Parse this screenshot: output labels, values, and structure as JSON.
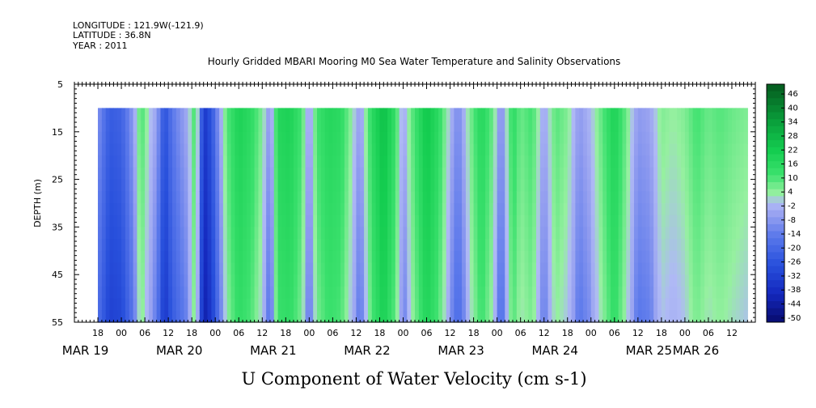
{
  "header": {
    "longitude": "LONGITUDE : 121.9W(-121.9)",
    "latitude": "LATITUDE : 36.8N",
    "year": "YEAR : 2011"
  },
  "chart_data": {
    "type": "heatmap",
    "title": "Hourly Gridded MBARI Mooring M0 Sea Water Temperature and Salinity Observations",
    "xlabel": "U Component of Water Velocity (cm s-1)",
    "ylabel": "DEPTH (m)",
    "ylim": [
      5,
      55
    ],
    "y_inverted": true,
    "y_ticks": [
      5,
      15,
      25,
      35,
      45,
      55
    ],
    "x_range_hours": [
      "2011-03-19T12:00",
      "2011-03-26T18:00"
    ],
    "x_hour_ticks": [
      "18",
      "00",
      "06",
      "12",
      "18",
      "00",
      "06",
      "12",
      "18",
      "00",
      "06",
      "12",
      "18",
      "00",
      "06",
      "12",
      "18",
      "00",
      "06",
      "12",
      "18",
      "00",
      "06",
      "12",
      "18",
      "00",
      "06",
      "12"
    ],
    "x_date_labels": [
      "MAR 19",
      "MAR 20",
      "MAR 21",
      "MAR 22",
      "MAR 23",
      "MAR 24",
      "MAR 25",
      "MAR 26"
    ],
    "data_depth_range": [
      10,
      55
    ],
    "data_time_start": "2011-03-19T18:00",
    "data_time_end": "2011-03-26T16:00",
    "colorbar": {
      "levels": [
        "46",
        "40",
        "34",
        "28",
        "22",
        "16",
        "10",
        "4",
        "-2",
        "-8",
        "-14",
        "-20",
        "-26",
        "-32",
        "-38",
        "-44",
        "-50"
      ],
      "range": [
        -50,
        50
      ],
      "positive_color": "#00d24a",
      "negative_color": "#1030d0",
      "zero_color": "#9fa8f0"
    },
    "time_profile": [
      {
        "t": "2011-03-19T18:00",
        "u": -8
      },
      {
        "t": "2011-03-19T21:00",
        "u": -22
      },
      {
        "t": "2011-03-20T00:00",
        "u": -20
      },
      {
        "t": "2011-03-20T03:00",
        "u": -6
      },
      {
        "t": "2011-03-20T05:00",
        "u": 12
      },
      {
        "t": "2011-03-20T07:00",
        "u": 2
      },
      {
        "t": "2011-03-20T09:00",
        "u": -4
      },
      {
        "t": "2011-03-20T11:00",
        "u": -26
      },
      {
        "t": "2011-03-20T13:00",
        "u": -14
      },
      {
        "t": "2011-03-20T15:00",
        "u": -8
      },
      {
        "t": "2011-03-20T17:00",
        "u": -2
      },
      {
        "t": "2011-03-20T19:00",
        "u": 14
      },
      {
        "t": "2011-03-20T21:00",
        "u": -34
      },
      {
        "t": "2011-03-20T23:00",
        "u": -24
      },
      {
        "t": "2011-03-21T01:00",
        "u": -6
      },
      {
        "t": "2011-03-21T03:00",
        "u": 10
      },
      {
        "t": "2011-03-21T06:00",
        "u": 20
      },
      {
        "t": "2011-03-21T09:00",
        "u": 16
      },
      {
        "t": "2011-03-21T12:00",
        "u": 6
      },
      {
        "t": "2011-03-21T14:00",
        "u": -8
      },
      {
        "t": "2011-03-21T16:00",
        "u": 18
      },
      {
        "t": "2011-03-21T19:00",
        "u": 20
      },
      {
        "t": "2011-03-21T22:00",
        "u": 12
      },
      {
        "t": "2011-03-22T00:00",
        "u": -6
      },
      {
        "t": "2011-03-22T02:00",
        "u": 12
      },
      {
        "t": "2011-03-22T05:00",
        "u": 18
      },
      {
        "t": "2011-03-22T08:00",
        "u": 16
      },
      {
        "t": "2011-03-22T11:00",
        "u": 4
      },
      {
        "t": "2011-03-22T13:00",
        "u": -6
      },
      {
        "t": "2011-03-22T16:00",
        "u": 16
      },
      {
        "t": "2011-03-22T19:00",
        "u": 26
      },
      {
        "t": "2011-03-22T22:00",
        "u": 14
      },
      {
        "t": "2011-03-23T00:00",
        "u": -4
      },
      {
        "t": "2011-03-23T02:00",
        "u": 8
      },
      {
        "t": "2011-03-23T06:00",
        "u": 24
      },
      {
        "t": "2011-03-23T09:00",
        "u": 16
      },
      {
        "t": "2011-03-23T12:00",
        "u": 0
      },
      {
        "t": "2011-03-23T14:00",
        "u": -10
      },
      {
        "t": "2011-03-23T17:00",
        "u": 6
      },
      {
        "t": "2011-03-23T20:00",
        "u": 18
      },
      {
        "t": "2011-03-23T23:00",
        "u": 8
      },
      {
        "t": "2011-03-24T01:00",
        "u": -10
      },
      {
        "t": "2011-03-24T04:00",
        "u": 16
      },
      {
        "t": "2011-03-24T06:00",
        "u": 8
      },
      {
        "t": "2011-03-24T09:00",
        "u": 12
      },
      {
        "t": "2011-03-24T12:00",
        "u": -4
      },
      {
        "t": "2011-03-24T15:00",
        "u": 10
      },
      {
        "t": "2011-03-24T18:00",
        "u": 6
      },
      {
        "t": "2011-03-24T21:00",
        "u": -6
      },
      {
        "t": "2011-03-25T00:00",
        "u": 0
      },
      {
        "t": "2011-03-25T03:00",
        "u": 10
      },
      {
        "t": "2011-03-25T06:00",
        "u": 20
      },
      {
        "t": "2011-03-25T09:00",
        "u": 8
      },
      {
        "t": "2011-03-25T12:00",
        "u": -6
      },
      {
        "t": "2011-03-25T15:00",
        "u": -4
      },
      {
        "t": "2011-03-25T18:00",
        "u": 6
      },
      {
        "t": "2011-03-25T21:00",
        "u": 4
      },
      {
        "t": "2011-03-26T00:00",
        "u": 6
      },
      {
        "t": "2011-03-26T03:00",
        "u": 12
      },
      {
        "t": "2011-03-26T06:00",
        "u": 8
      },
      {
        "t": "2011-03-26T09:00",
        "u": 10
      },
      {
        "t": "2011-03-26T12:00",
        "u": 8
      },
      {
        "t": "2011-03-26T16:00",
        "u": 6
      }
    ],
    "depth_gradient_cm_s_per_m": -0.12
  }
}
